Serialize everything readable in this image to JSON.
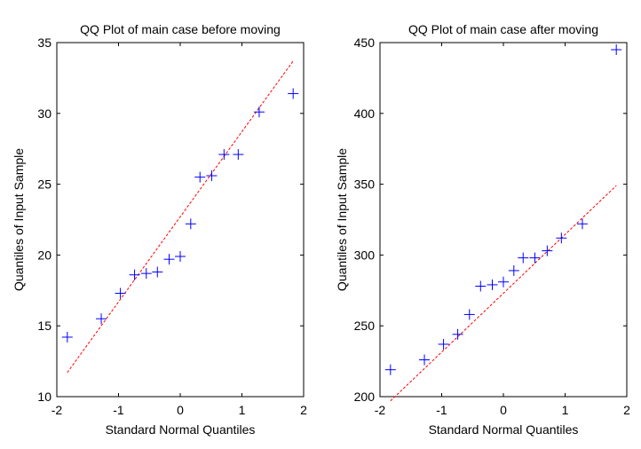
{
  "chart_data": [
    {
      "type": "scatter",
      "title": "QQ Plot of main case before moving",
      "xlabel": "Standard Normal Quantiles",
      "ylabel": "Quantiles of Input Sample",
      "xlim": [
        -2,
        2
      ],
      "ylim": [
        10,
        35
      ],
      "xticks": [
        -2,
        -1,
        0,
        1,
        2
      ],
      "yticks": [
        10,
        15,
        20,
        25,
        30,
        35
      ],
      "grid": false,
      "series": [
        {
          "marker": "+",
          "color": "#0000ff",
          "points": [
            [
              -1.83,
              14.2
            ],
            [
              -1.28,
              15.5
            ],
            [
              -0.97,
              17.3
            ],
            [
              -0.74,
              18.6
            ],
            [
              -0.55,
              18.7
            ],
            [
              -0.37,
              18.8
            ],
            [
              -0.18,
              19.7
            ],
            [
              0.0,
              19.9
            ],
            [
              0.17,
              22.2
            ],
            [
              0.32,
              25.5
            ],
            [
              0.51,
              25.6
            ],
            [
              0.71,
              27.1
            ],
            [
              0.94,
              27.1
            ],
            [
              1.28,
              30.1
            ],
            [
              1.83,
              31.4
            ]
          ]
        }
      ],
      "reference_line": {
        "color": "#ff0000",
        "style": "dashed",
        "points": [
          [
            -1.83,
            11.7
          ],
          [
            1.83,
            33.7
          ]
        ]
      }
    },
    {
      "type": "scatter",
      "title": "QQ Plot of main case after moving",
      "xlabel": "Standard Normal Quantiles",
      "ylabel": "Quantiles of Input Sample",
      "xlim": [
        -2,
        2
      ],
      "ylim": [
        200,
        450
      ],
      "xticks": [
        -2,
        -1,
        0,
        1,
        2
      ],
      "yticks": [
        200,
        250,
        300,
        350,
        400,
        450
      ],
      "grid": false,
      "series": [
        {
          "marker": "+",
          "color": "#0000ff",
          "points": [
            [
              -1.83,
              219
            ],
            [
              -1.28,
              226
            ],
            [
              -0.97,
              237
            ],
            [
              -0.74,
              244
            ],
            [
              -0.55,
              258
            ],
            [
              -0.37,
              278
            ],
            [
              -0.18,
              279
            ],
            [
              0.0,
              281
            ],
            [
              0.17,
              289
            ],
            [
              0.32,
              298
            ],
            [
              0.51,
              298
            ],
            [
              0.71,
              303
            ],
            [
              0.94,
              312
            ],
            [
              1.28,
              322
            ],
            [
              1.83,
              445
            ]
          ]
        }
      ],
      "reference_line": {
        "color": "#ff0000",
        "style": "dashed",
        "points": [
          [
            -1.83,
            197
          ],
          [
            1.83,
            349
          ]
        ]
      }
    }
  ]
}
